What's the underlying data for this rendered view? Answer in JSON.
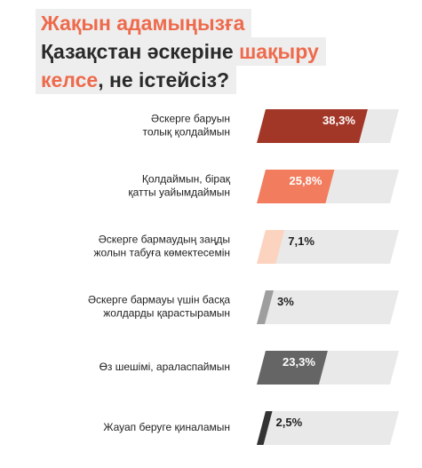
{
  "title": {
    "line1": "Жақын адамыңызға",
    "line2_prefix": "Қазақстан әскеріне ",
    "line2_accent": "шақыру",
    "line3_accent": "келсе",
    "line3_suffix": ", не істейсіз?"
  },
  "colors": {
    "accent": "#ee6a4c",
    "track": "#e9e9e9"
  },
  "chart_data": {
    "type": "bar",
    "orientation": "horizontal",
    "xlim": [
      0,
      100
    ],
    "categories": [
      [
        "Әскерге баруын",
        "толық қолдаймын"
      ],
      [
        "Қолдаймын, бірақ",
        "қатты уайымдаймын"
      ],
      [
        "Әскерге бармаудың заңды",
        "жолын табуға көмектесемін"
      ],
      [
        "Әскерге бармауы үшін басқа",
        "жолдарды қарастырамын"
      ],
      [
        "Өз шешімі, араласпаймын"
      ],
      [
        "Жауап беруге қиналамын"
      ]
    ],
    "values": [
      38.3,
      25.8,
      7.1,
      3,
      23.3,
      2.5
    ],
    "value_labels": [
      "38,3%",
      "25,8%",
      "7,1%",
      "3%",
      "23,3%",
      "2,5%"
    ],
    "bar_colors": [
      "#a23728",
      "#f27c5e",
      "#fcd3bf",
      "#9e9e9e",
      "#656565",
      "#333333"
    ]
  }
}
